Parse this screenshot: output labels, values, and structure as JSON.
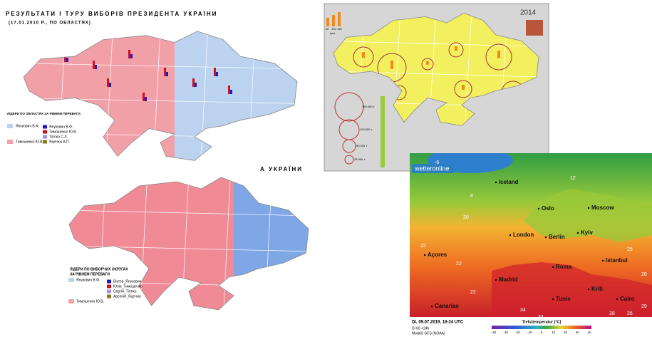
{
  "map_elections_oblast": {
    "title": "РЕЗУЛЬТАТИ І ТУРУ ВИБОРІВ ПРЕЗИДЕНТА УКРАЇНИ",
    "subtitle": "(17.01.2010 Р., ПО ОБЛАСТЯХ)",
    "legend_title": "ЛІДЕРИ ПО ОБЛАСТЯХ ЗА РІВНЕМ ПЕРЕВАГИ",
    "leaders": [
      "Янукович В.Ф.",
      "Тимошенко Ю.В."
    ],
    "candidates": [
      "Янукович В.Ф.",
      "Тимошенко Ю.В.",
      "Тігіпко С.Л.",
      "Яценюк А.П."
    ]
  },
  "caption_fragment": "А УКРАЇНИ",
  "map_elections_districts": {
    "legend_title": [
      "ЛІДЕРИ ПО ВИБОРЧИХ ОКРУГАХ",
      "ЗА РІВНЕМ ПЕРЕВАГИ"
    ],
    "leaders": [
      "Янукович В.Ф.",
      "Тимошенко Ю.В."
    ],
    "candidates": [
      "Віктор_Янукович",
      "Юлія_Тимошенко",
      "Сергій_Тігіпко",
      "Арсеній_Яценюк"
    ]
  },
  "map_harvest": {
    "year": "2014",
    "bar_scale": [
      "50",
      "100",
      "150"
    ],
    "bar_unit": "ц/га",
    "circle_legend": [
      "150 000 т",
      "100 000 т",
      "50 000 т",
      "25 000 т"
    ]
  },
  "map_weather": {
    "logo": "wetteronline",
    "cities": [
      "Iceland",
      "Oslo",
      "Moscow",
      "London",
      "Berlin",
      "Kyiv",
      "Açores",
      "Roma",
      "Istanbul",
      "Madrid",
      "Canarias",
      "Tunis",
      "Kriti",
      "Cairo"
    ],
    "temperatures": [
      "-6",
      "8",
      "12",
      "22",
      "20",
      "22",
      "22",
      "25",
      "34",
      "34",
      "29",
      "26",
      "28",
      "28"
    ],
    "date": "Di, 09.07.2019, 18-24 UTC",
    "run": "Di 00 +24h",
    "model": "Modell: GFS (NOAA)",
    "scale_title": "Tiefsttemperatur [°C]",
    "scale_ticks": [
      "-40",
      "-30",
      "-20",
      "-10",
      "0",
      "10",
      "20",
      "30",
      "40"
    ]
  }
}
